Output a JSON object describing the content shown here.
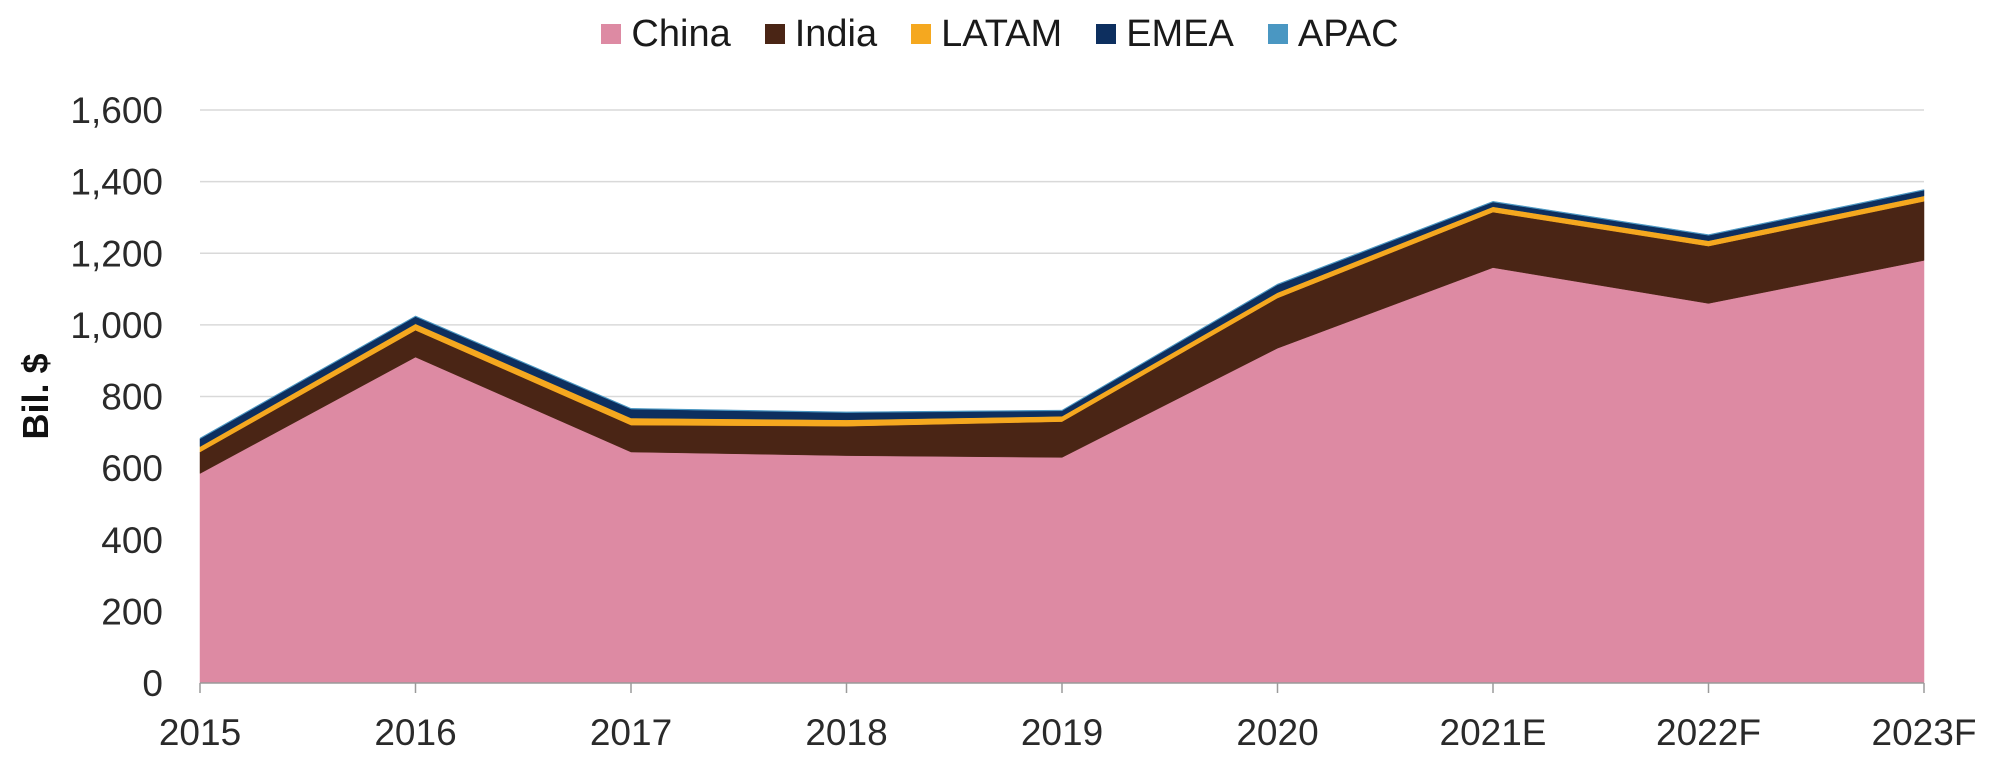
{
  "chart_data": {
    "type": "area",
    "stacked": true,
    "categories": [
      "2015",
      "2016",
      "2017",
      "2018",
      "2019",
      "2020",
      "2021E",
      "2022F",
      "2023F"
    ],
    "series": [
      {
        "name": "China",
        "color": "#dd8aa3",
        "values": [
          585,
          910,
          645,
          635,
          630,
          935,
          1160,
          1060,
          1180
        ]
      },
      {
        "name": "India",
        "color": "#4a2515",
        "values": [
          60,
          75,
          75,
          82,
          100,
          140,
          155,
          160,
          165
        ]
      },
      {
        "name": "LATAM",
        "color": "#f5a81f",
        "values": [
          15,
          18,
          20,
          18,
          15,
          15,
          15,
          15,
          15
        ]
      },
      {
        "name": "EMEA",
        "color": "#0d2f5f",
        "values": [
          22,
          20,
          25,
          20,
          15,
          22,
          13,
          15,
          16
        ]
      },
      {
        "name": "APAC",
        "color": "#4a97c2",
        "values": [
          2,
          2,
          2,
          2,
          2,
          2,
          2,
          2,
          2
        ]
      }
    ],
    "ylabel": "Bil. $",
    "xlabel": "",
    "ylim": [
      0,
      1600
    ],
    "yticks": [
      0,
      200,
      400,
      600,
      800,
      1000,
      1200,
      1400,
      1600
    ],
    "ytick_labels": [
      "0",
      "200",
      "400",
      "600",
      "800",
      "1,000",
      "1,200",
      "1,400",
      "1,600"
    ],
    "grid": "horizontal",
    "legend_position": "top-center"
  }
}
